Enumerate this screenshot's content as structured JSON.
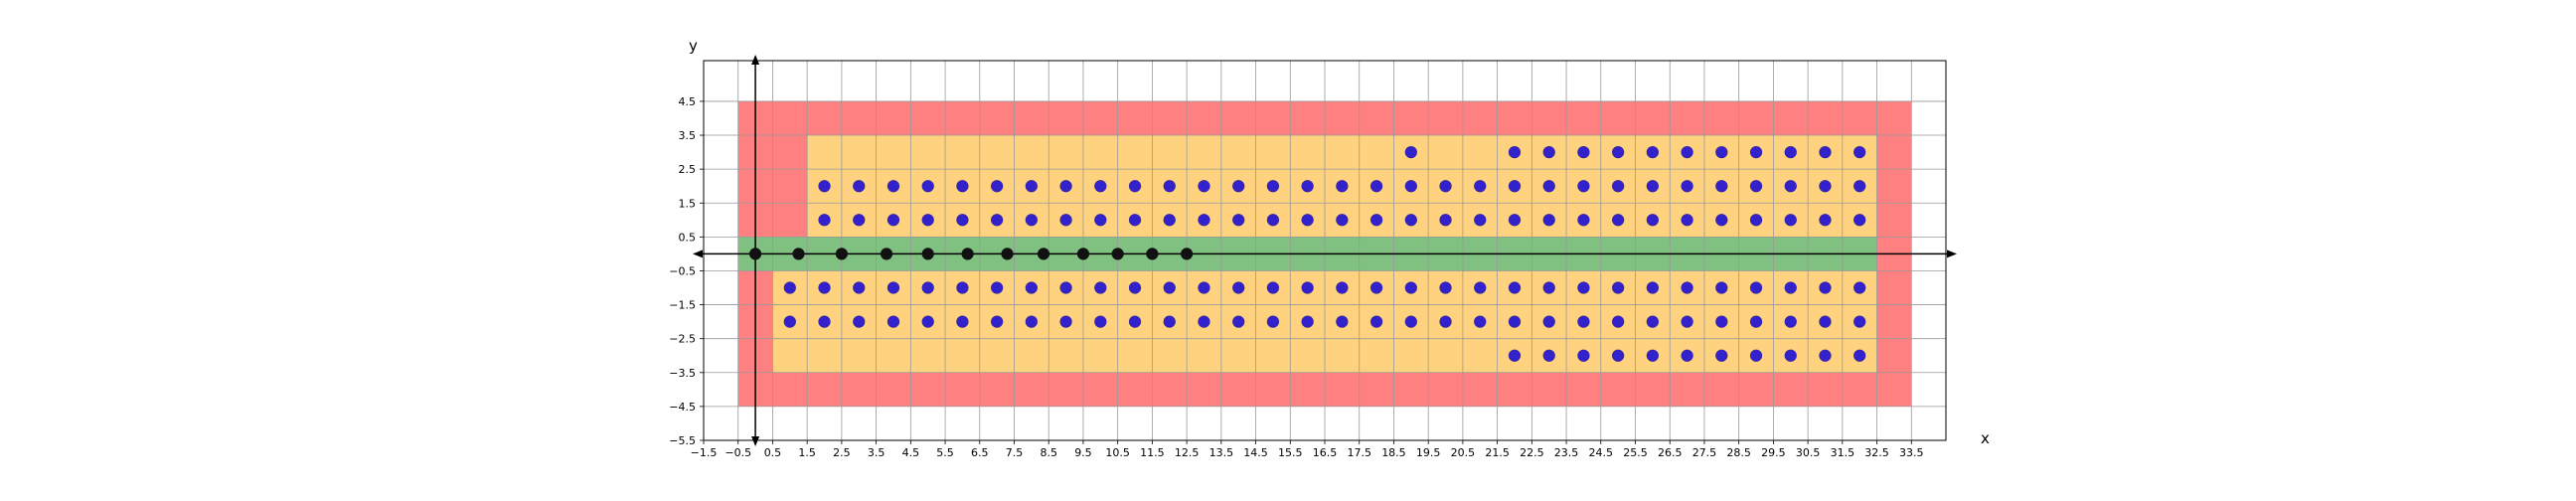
{
  "chart_data": {
    "type": "scatter",
    "title": "",
    "xlabel": "x",
    "ylabel": "y",
    "xlim": [
      -1.5,
      34.5
    ],
    "ylim": [
      -5.5,
      5.7
    ],
    "grid": true,
    "xticks": [
      -1.5,
      -0.5,
      0.5,
      1.5,
      2.5,
      3.5,
      4.5,
      5.5,
      6.5,
      7.5,
      8.5,
      9.5,
      10.5,
      11.5,
      12.5,
      13.5,
      14.5,
      15.5,
      16.5,
      17.5,
      18.5,
      19.5,
      20.5,
      21.5,
      22.5,
      23.5,
      24.5,
      25.5,
      26.5,
      27.5,
      28.5,
      29.5,
      30.5,
      31.5,
      32.5,
      33.5
    ],
    "xtick_labels": [
      "−1.5",
      "−0.5",
      "0.5",
      "1.5",
      "2.5",
      "3.5",
      "4.5",
      "5.5",
      "6.5",
      "7.5",
      "8.5",
      "9.5",
      "10.5",
      "11.5",
      "12.5",
      "13.5",
      "14.5",
      "15.5",
      "16.5",
      "17.5",
      "18.5",
      "19.5",
      "20.5",
      "21.5",
      "22.5",
      "23.5",
      "24.5",
      "25.5",
      "26.5",
      "27.5",
      "28.5",
      "29.5",
      "30.5",
      "31.5",
      "32.5",
      "33.5"
    ],
    "yticks": [
      4.5,
      3.5,
      2.5,
      1.5,
      0.5,
      -0.5,
      -1.5,
      -2.5,
      -3.5,
      -4.5,
      -5.5
    ],
    "ytick_labels": [
      "4.5",
      "3.5",
      "2.5",
      "1.5",
      "0.5",
      "−0.5",
      "−1.5",
      "−2.5",
      "−3.5",
      "−4.5",
      "−5.5"
    ],
    "colors": {
      "red_region": "#ff8080",
      "orange_region": "#ffd280",
      "green_region": "#80c080",
      "blue_points": "#3322cc",
      "black_points": "#111111",
      "grid": "#999999"
    },
    "regions": [
      {
        "color": "red_region",
        "x": [
          -0.5,
          33.5
        ],
        "y": [
          -4.5,
          4.5
        ]
      },
      {
        "color": "orange_region",
        "x": [
          1.5,
          32.5
        ],
        "y": [
          0.5,
          3.5
        ]
      },
      {
        "color": "orange_region",
        "x": [
          0.5,
          32.5
        ],
        "y": [
          -3.5,
          -0.5
        ]
      },
      {
        "color": "green_region",
        "x": [
          -0.5,
          32.5
        ],
        "y": [
          -0.5,
          0.5
        ]
      }
    ],
    "series": [
      {
        "color": "blue_points",
        "rows": [
          {
            "y": 3,
            "x": [
              19,
              22,
              23,
              24,
              25,
              26,
              27,
              28,
              29,
              30,
              31,
              32
            ]
          },
          {
            "y": 2,
            "x": [
              2,
              3,
              4,
              5,
              6,
              7,
              8,
              9,
              10,
              11,
              12,
              13,
              14,
              15,
              16,
              17,
              18,
              19,
              20,
              21,
              22,
              23,
              24,
              25,
              26,
              27,
              28,
              29,
              30,
              31,
              32
            ]
          },
          {
            "y": 1,
            "x": [
              2,
              3,
              4,
              5,
              6,
              7,
              8,
              9,
              10,
              11,
              12,
              13,
              14,
              15,
              16,
              17,
              18,
              19,
              20,
              21,
              22,
              23,
              24,
              25,
              26,
              27,
              28,
              29,
              30,
              31,
              32
            ]
          },
          {
            "y": -1,
            "x": [
              1,
              2,
              3,
              4,
              5,
              6,
              7,
              8,
              9,
              10,
              11,
              12,
              13,
              14,
              15,
              16,
              17,
              18,
              19,
              20,
              21,
              22,
              23,
              24,
              25,
              26,
              27,
              28,
              29,
              30,
              31,
              32
            ]
          },
          {
            "y": -2,
            "x": [
              1,
              2,
              3,
              4,
              5,
              6,
              7,
              8,
              9,
              10,
              11,
              12,
              13,
              14,
              15,
              16,
              17,
              18,
              19,
              20,
              21,
              22,
              23,
              24,
              25,
              26,
              27,
              28,
              29,
              30,
              31,
              32
            ]
          },
          {
            "y": -3,
            "x": [
              22,
              23,
              24,
              25,
              26,
              27,
              28,
              29,
              30,
              31,
              32
            ]
          }
        ]
      },
      {
        "color": "black_points",
        "rows": [
          {
            "y": 0,
            "x": [
              0,
              1.25,
              2.5,
              3.8,
              5,
              6.15,
              7.3,
              8.35,
              9.5,
              10.5,
              11.5,
              12.5
            ]
          }
        ]
      }
    ]
  }
}
